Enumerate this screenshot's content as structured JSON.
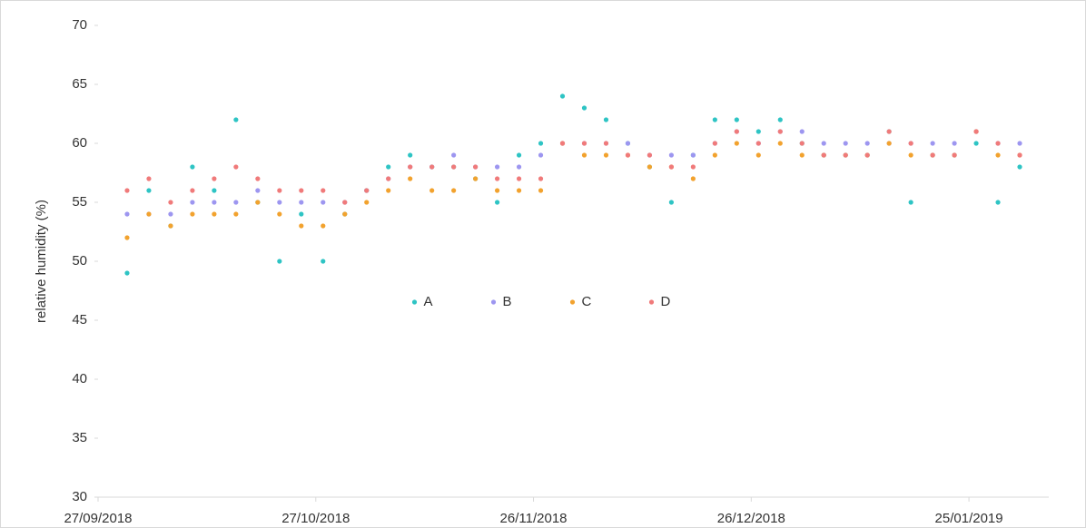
{
  "chart_data": {
    "type": "scatter",
    "y_label": "relative humidity (%)",
    "x": [
      "01/10/2018",
      "04/10/2018",
      "07/10/2018",
      "10/10/2018",
      "13/10/2018",
      "16/10/2018",
      "19/10/2018",
      "22/10/2018",
      "25/10/2018",
      "28/10/2018",
      "31/10/2018",
      "03/11/2018",
      "06/11/2018",
      "09/11/2018",
      "12/11/2018",
      "15/11/2018",
      "18/11/2018",
      "21/11/2018",
      "24/11/2018",
      "27/11/2018",
      "30/11/2018",
      "03/12/2018",
      "06/12/2018",
      "09/12/2018",
      "12/12/2018",
      "15/12/2018",
      "18/12/2018",
      "21/12/2018",
      "24/12/2018",
      "27/12/2018",
      "30/12/2018",
      "02/01/2019",
      "05/01/2019",
      "08/01/2019",
      "11/01/2019",
      "14/01/2019",
      "17/01/2019",
      "20/01/2019",
      "23/01/2019",
      "26/01/2019",
      "29/01/2019",
      "01/02/2019"
    ],
    "series": [
      {
        "name": "A",
        "color": "#2ec4c4",
        "values": [
          49,
          56,
          53,
          58,
          56,
          62,
          55,
          50,
          54,
          50,
          54,
          56,
          58,
          59,
          58,
          58,
          57,
          55,
          59,
          60,
          64,
          63,
          62,
          60,
          58,
          55,
          59,
          62,
          62,
          61,
          62,
          60,
          59,
          59,
          59,
          61,
          55,
          59,
          59,
          60,
          55,
          58
        ]
      },
      {
        "name": "B",
        "color": "#9d96f0",
        "values": [
          54,
          54,
          54,
          55,
          55,
          55,
          56,
          55,
          55,
          55,
          55,
          56,
          57,
          58,
          58,
          59,
          58,
          58,
          58,
          59,
          60,
          60,
          60,
          60,
          59,
          59,
          59,
          60,
          61,
          60,
          61,
          61,
          60,
          60,
          60,
          60,
          60,
          60,
          60,
          61,
          60,
          60
        ]
      },
      {
        "name": "C",
        "color": "#f2a22e",
        "values": [
          52,
          54,
          53,
          54,
          54,
          54,
          55,
          54,
          53,
          53,
          54,
          55,
          56,
          57,
          56,
          56,
          57,
          56,
          56,
          56,
          60,
          59,
          59,
          59,
          58,
          58,
          57,
          59,
          60,
          59,
          60,
          59,
          59,
          59,
          59,
          60,
          59,
          59,
          59,
          61,
          59,
          59
        ]
      },
      {
        "name": "D",
        "color": "#f07a7a",
        "values": [
          56,
          57,
          55,
          56,
          57,
          58,
          57,
          56,
          56,
          56,
          55,
          56,
          57,
          58,
          58,
          58,
          58,
          57,
          57,
          57,
          60,
          60,
          60,
          59,
          59,
          58,
          58,
          60,
          61,
          60,
          61,
          60,
          59,
          59,
          59,
          61,
          60,
          59,
          59,
          61,
          60,
          59
        ]
      }
    ],
    "xlim": [
      "27/09/2018",
      "05/02/2019"
    ],
    "xticks": [
      "27/09/2018",
      "27/10/2018",
      "26/11/2018",
      "26/12/2018",
      "25/01/2019"
    ],
    "ylim": [
      30,
      70
    ],
    "yticks": [
      30,
      35,
      40,
      45,
      50,
      55,
      60,
      65,
      70
    ],
    "legend": "center"
  }
}
